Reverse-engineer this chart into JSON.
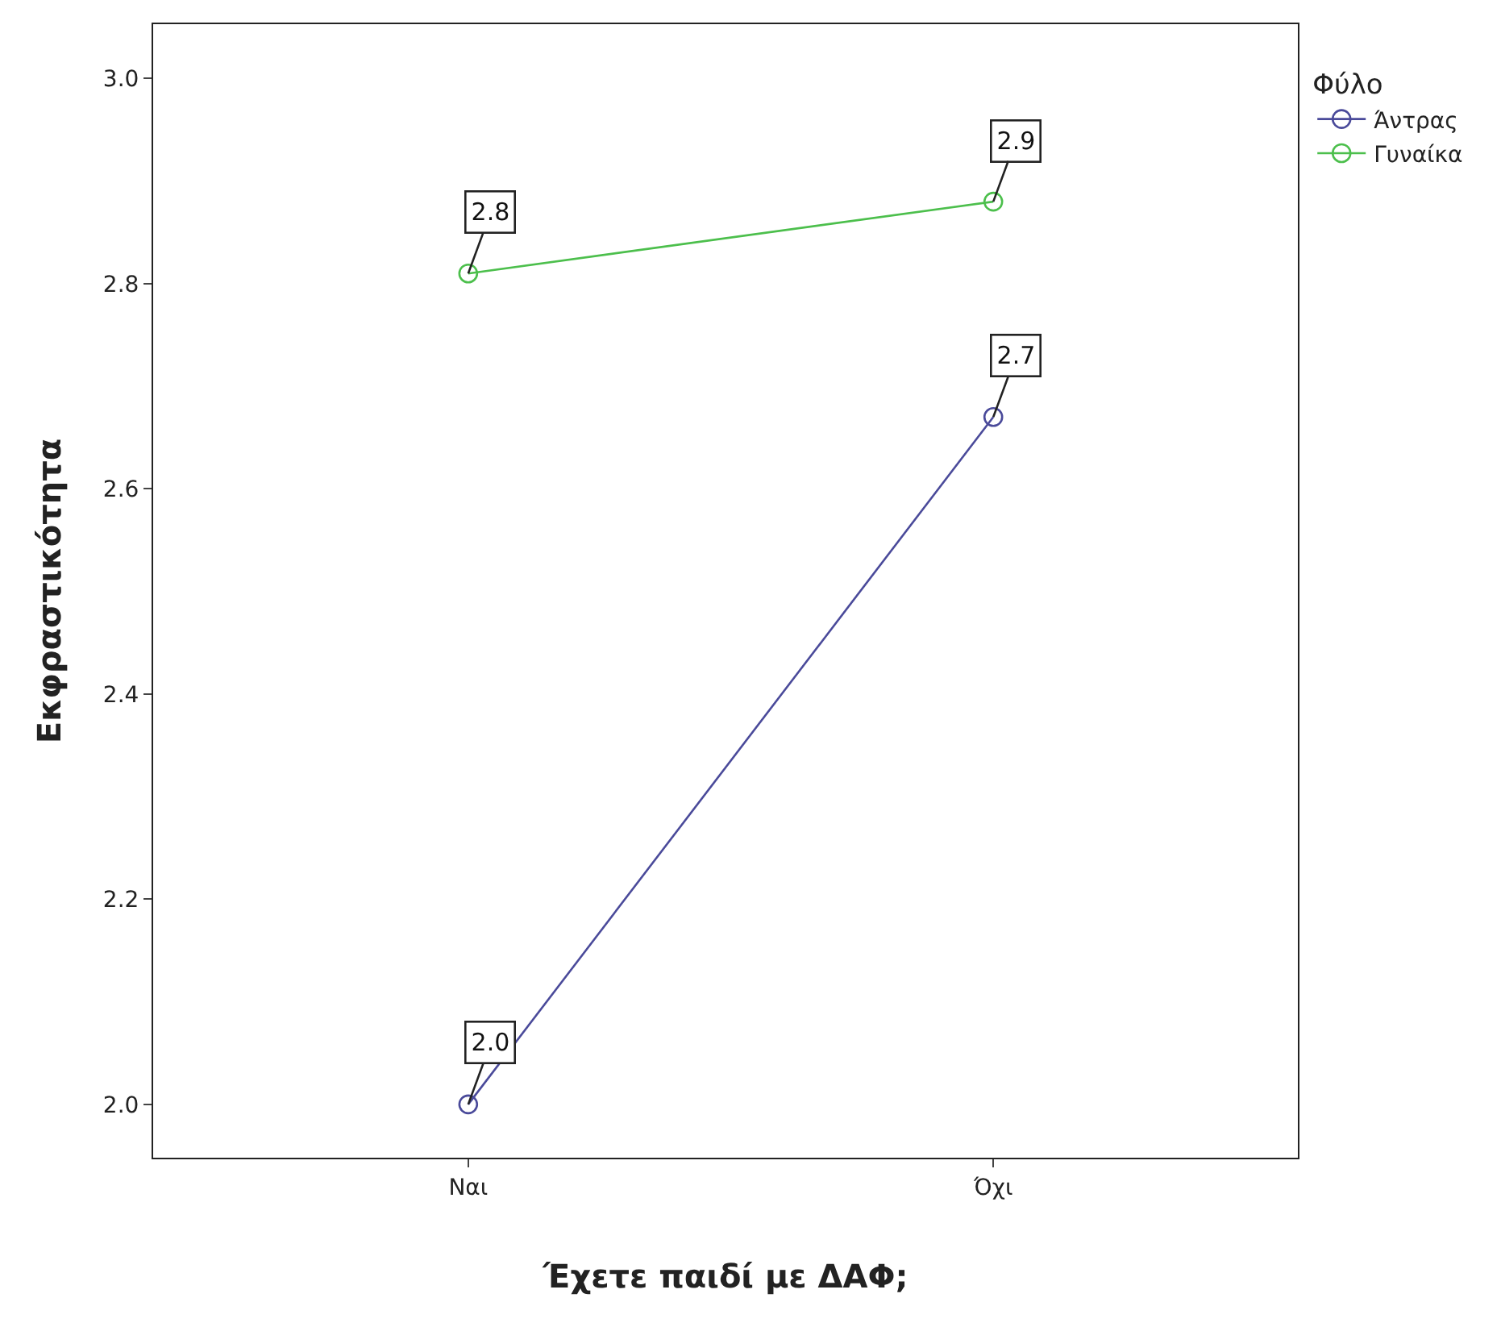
{
  "chart_data": {
    "type": "line",
    "xlabel": "Έχετε παιδί με ΔΑΦ;",
    "ylabel": "Εκφραστικότητα",
    "legend_title": "Φύλο",
    "categories": [
      "Ναι",
      "Όχι"
    ],
    "series": [
      {
        "name": "Άντρας",
        "color": "#4a4a9a",
        "values": [
          2.0,
          2.67
        ],
        "value_labels": [
          "2.0",
          "2.7"
        ]
      },
      {
        "name": "Γυναίκα",
        "color": "#4cbf4c",
        "values": [
          2.81,
          2.88
        ],
        "value_labels": [
          "2.8",
          "2.9"
        ]
      }
    ],
    "ylim": [
      1.948,
      3.053
    ],
    "yticks": [
      {
        "value": 2.0,
        "label": "2.0"
      },
      2.2,
      2.4,
      2.6,
      2.8,
      {
        "value": 3.0,
        "label": "3.0"
      }
    ],
    "legend": "top right",
    "marker": "circle",
    "line_style": "solid"
  }
}
